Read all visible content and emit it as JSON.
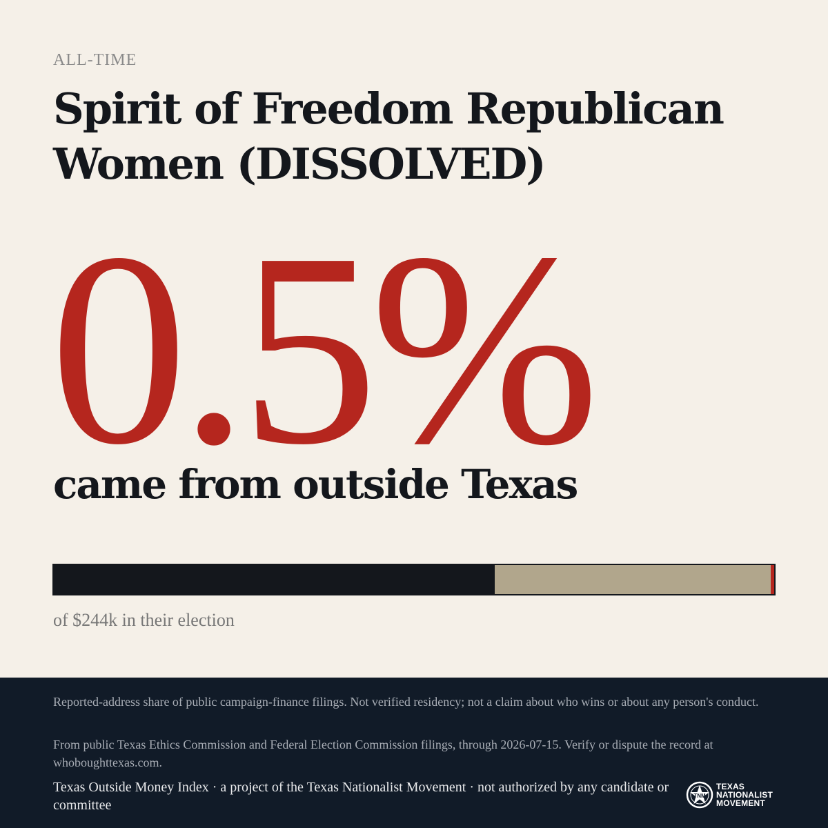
{
  "header": {
    "kicker": "ALL-TIME",
    "title": "Spirit of Freedom Republican Women (DISSOLVED)"
  },
  "stat": {
    "value": "0.5%",
    "subline": "came from outside Texas"
  },
  "bar": {
    "segments": [
      {
        "label": "dark",
        "fraction": 0.612,
        "color": "#14171c"
      },
      {
        "label": "tan",
        "fraction": 0.383,
        "color": "#b1a68c"
      },
      {
        "label": "outside-texas",
        "fraction": 0.005,
        "color": "#b5261e"
      }
    ],
    "caption": "of $244k in their election"
  },
  "footer": {
    "disclaimer": "Reported-address share of public campaign-finance filings. Not verified residency; not a claim about who wins or about any person's conduct.",
    "source": "From public Texas Ethics Commission and Federal Election Commission filings, through 2026-07-15. Verify or dispute the record at whoboughttexas.com.",
    "credit": "Texas Outside Money Index · a project of the Texas Nationalist Movement · not authorized by any candidate or committee",
    "logo": {
      "icon": "star-seal-icon",
      "line1": "TEXAS",
      "line2": "NATIONALIST",
      "line3": "MOVEMENT"
    }
  },
  "colors": {
    "background": "#f5f0e8",
    "accent": "#b5261e",
    "ink": "#14171c",
    "footer": "#111b28"
  }
}
